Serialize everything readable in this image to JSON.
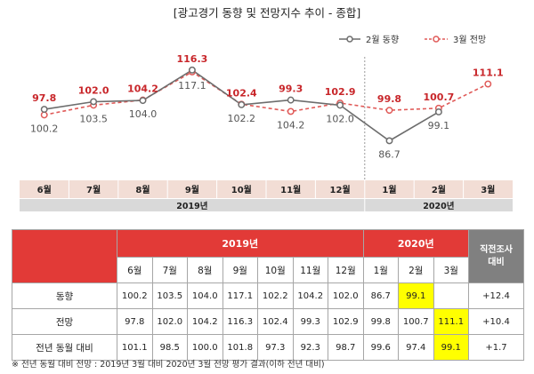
{
  "title": "[광고경기 동향 및 전망지수 추이 - 종합]",
  "legend": {
    "current": "2월 동향",
    "forecast": "3월 전망"
  },
  "colors": {
    "current": "#6d6d6d",
    "forecast": "#e05a58",
    "forecast_label": "#c8262a",
    "header_red": "#e23a37"
  },
  "chart_data": {
    "type": "line",
    "categories": [
      "6월",
      "7월",
      "8월",
      "9월",
      "10월",
      "11월",
      "12월",
      "1월",
      "2월",
      "3월"
    ],
    "year_groups": [
      {
        "label": "2019년",
        "span": 7
      },
      {
        "label": "2020년",
        "span": 3
      }
    ],
    "series": [
      {
        "name": "2월 동향",
        "style": "solid",
        "values": [
          100.2,
          103.5,
          104.0,
          117.1,
          102.2,
          104.2,
          102.0,
          86.7,
          99.1,
          null
        ]
      },
      {
        "name": "3월 전망",
        "style": "dashed",
        "values": [
          97.8,
          102.0,
          104.2,
          116.3,
          102.4,
          99.3,
          102.9,
          99.8,
          100.7,
          111.1
        ]
      }
    ],
    "forecast_labels": [
      "97.8",
      "102.0",
      "104.2",
      "116.3",
      "102.4",
      "99.3",
      "102.9",
      "99.8",
      "100.7",
      "111.1"
    ],
    "current_labels": [
      "100.2",
      "103.5",
      "104.0",
      "117.1",
      "102.2",
      "104.2",
      "102.0",
      "86.7",
      "99.1",
      ""
    ],
    "ylim": [
      80,
      122
    ],
    "divider_after_index": 6
  },
  "table": {
    "year_2019": "2019년",
    "year_2020": "2020년",
    "prev_survey": "직전조사\n대비",
    "months": [
      "6월",
      "7월",
      "8월",
      "9월",
      "10월",
      "11월",
      "12월",
      "1월",
      "2월",
      "3월"
    ],
    "rows": [
      {
        "label": "동향",
        "cells": [
          "100.2",
          "103.5",
          "104.0",
          "117.1",
          "102.2",
          "104.2",
          "102.0",
          "86.7",
          "99.1",
          ""
        ],
        "change": "+12.4",
        "highlight": [
          8
        ]
      },
      {
        "label": "전망",
        "cells": [
          "97.8",
          "102.0",
          "104.2",
          "116.3",
          "102.4",
          "99.3",
          "102.9",
          "99.8",
          "100.7",
          "111.1"
        ],
        "change": "+10.4",
        "highlight": [
          9
        ]
      },
      {
        "label": "전년 동월 대비",
        "cells": [
          "101.1",
          "98.5",
          "100.0",
          "101.8",
          "97.3",
          "92.3",
          "98.7",
          "99.6",
          "97.4",
          "99.1"
        ],
        "change": "+1.7",
        "highlight": [
          9
        ]
      }
    ]
  },
  "footnote": "※ 전년 동월 대비 전망 : 2019년 3월 대비 2020년 3월 전망 평가 결과(이하 전년 대비)"
}
